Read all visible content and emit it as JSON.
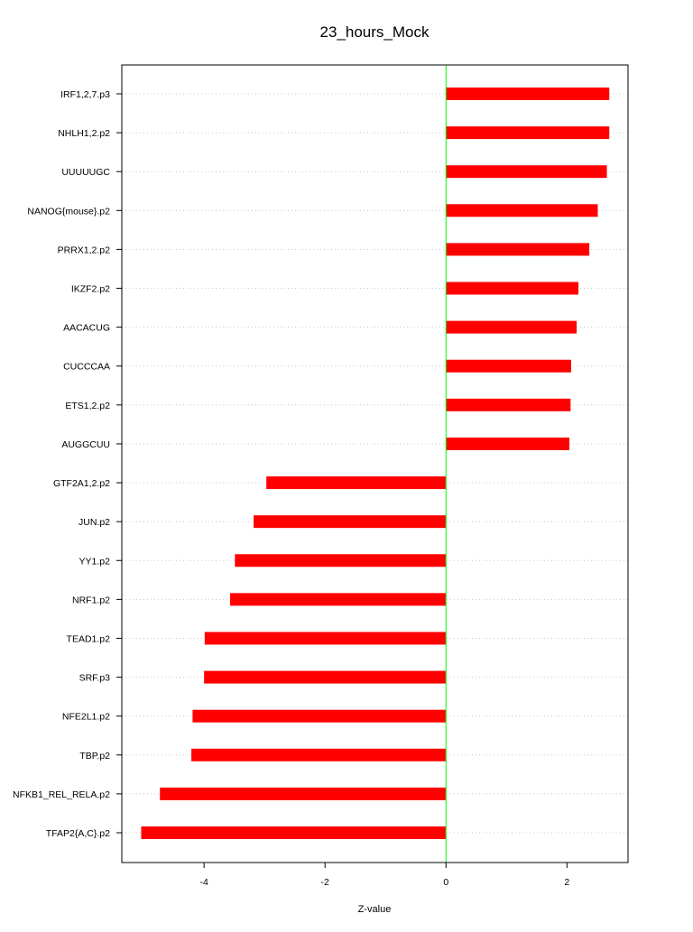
{
  "chart_data": {
    "type": "bar",
    "orientation": "horizontal",
    "title": "23_hours_Mock",
    "xlabel": "Z-value",
    "ylabel": "",
    "xlim": [
      -5.36,
      3.01
    ],
    "xticks": [
      -4,
      -2,
      0,
      2
    ],
    "grid": true,
    "categories": [
      "IRF1,2,7.p3",
      "NHLH1,2.p2",
      "UUUUUGC",
      "NANOG{mouse}.p2",
      "PRRX1,2.p2",
      "IKZF2.p2",
      "AACACUG",
      "CUCCCAA",
      "ETS1,2.p2",
      "AUGGCUU",
      "GTF2A1,2.p2",
      "JUN.p2",
      "YY1.p2",
      "NRF1.p2",
      "TEAD1.p2",
      "SRF.p3",
      "NFE2L1.p2",
      "TBP.p2",
      "NFKB1_REL_RELA.p2",
      "TFAP2{A,C}.p2"
    ],
    "values": [
      2.7,
      2.7,
      2.66,
      2.51,
      2.37,
      2.19,
      2.16,
      2.07,
      2.06,
      2.04,
      -2.97,
      -3.18,
      -3.49,
      -3.57,
      -3.99,
      -4.0,
      -4.19,
      -4.21,
      -4.73,
      -5.04
    ],
    "bar_color": "#ff0000",
    "zero_line_color": "#00ff00"
  }
}
